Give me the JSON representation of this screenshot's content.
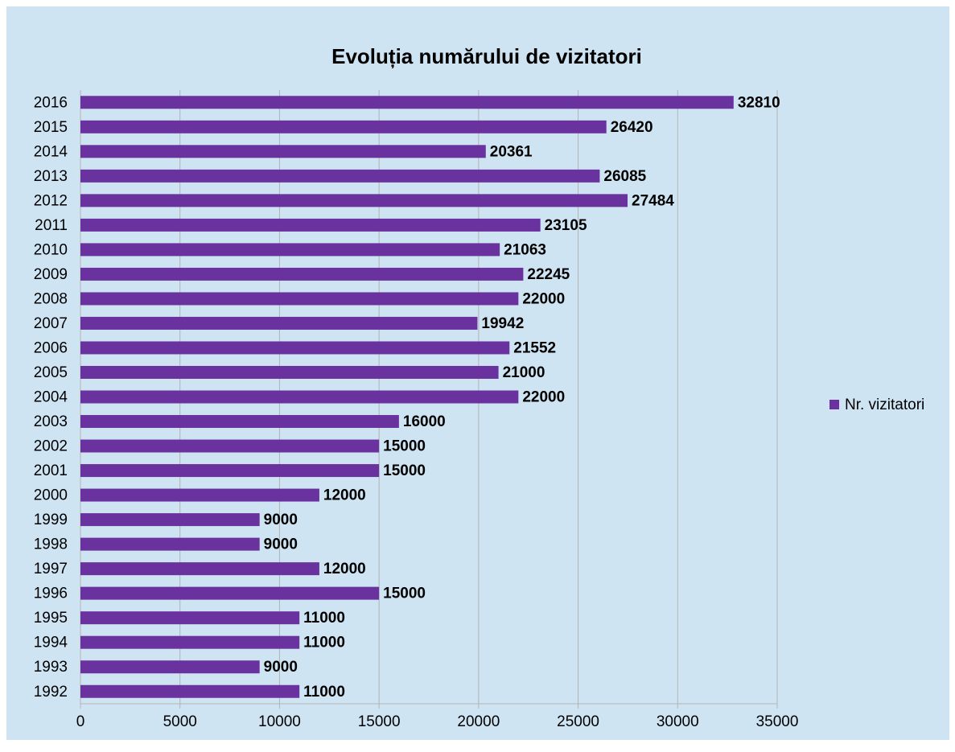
{
  "chart_data": {
    "type": "bar",
    "orientation": "horizontal",
    "title": "Evoluția numărului de vizitatori",
    "categories": [
      "1992",
      "1993",
      "1994",
      "1995",
      "1996",
      "1997",
      "1998",
      "1999",
      "2000",
      "2001",
      "2002",
      "2003",
      "2004",
      "2005",
      "2006",
      "2007",
      "2008",
      "2009",
      "2010",
      "2011",
      "2012",
      "2013",
      "2014",
      "2015",
      "2016"
    ],
    "series": [
      {
        "name": "Nr. vizitatori",
        "color": "#6a329f",
        "values": [
          11000,
          9000,
          11000,
          11000,
          15000,
          12000,
          9000,
          9000,
          12000,
          15000,
          15000,
          16000,
          22000,
          21000,
          21552,
          19942,
          22000,
          22245,
          21063,
          23105,
          27484,
          26085,
          20361,
          26420,
          32810
        ]
      }
    ],
    "xlim": [
      0,
      35000
    ],
    "xticks": [
      0,
      5000,
      10000,
      15000,
      20000,
      25000,
      30000,
      35000
    ],
    "grid": true,
    "legend": "right"
  }
}
